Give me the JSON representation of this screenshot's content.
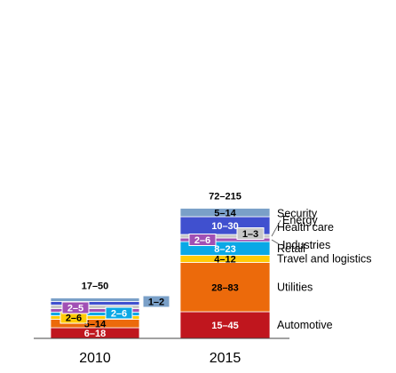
{
  "chart_data": {
    "type": "bar",
    "stacked": true,
    "categories": [
      "2010",
      "2015"
    ],
    "series": [
      {
        "name": "Automotive",
        "color": "#c0161e",
        "text_color": "#ffffff",
        "labels": [
          "6–18",
          "15–45"
        ]
      },
      {
        "name": "Utilities",
        "color": "#ec6a0b",
        "text_color": "#000000",
        "labels": [
          "5–14",
          "28–83"
        ]
      },
      {
        "name": "Travel and logistics",
        "color": "#ffcb05",
        "text_color": "#000000",
        "labels": [
          "2–6",
          "4–12"
        ]
      },
      {
        "name": "Retail",
        "color": "#0aa8e6",
        "text_color": "#ffffff",
        "labels": [
          "2–6",
          "8–23"
        ]
      },
      {
        "name": "Industries",
        "color": "#a150b4",
        "text_color": "#ffffff",
        "labels": [
          "2–5",
          "2–6"
        ]
      },
      {
        "name": "Energy",
        "color": "#c8c8c8",
        "text_color": "#000000",
        "labels": [
          "",
          "1–3"
        ]
      },
      {
        "name": "Health care",
        "color": "#4050cf",
        "text_color": "#ffffff",
        "labels": [
          "",
          "10–30"
        ]
      },
      {
        "name": "Security",
        "color": "#7aa0c8",
        "text_color": "#000000",
        "labels": [
          "1–2",
          "5–14"
        ]
      }
    ],
    "totals": [
      "17–50",
      "72–215"
    ],
    "value_midpoints": {
      "2010": [
        12,
        9.5,
        4,
        4,
        3.5,
        0.3,
        0.3,
        1.5
      ],
      "2015": [
        30,
        55.5,
        8,
        15.5,
        4,
        2,
        20,
        9.5
      ]
    },
    "legend_placement": "right of 2015 bar"
  }
}
